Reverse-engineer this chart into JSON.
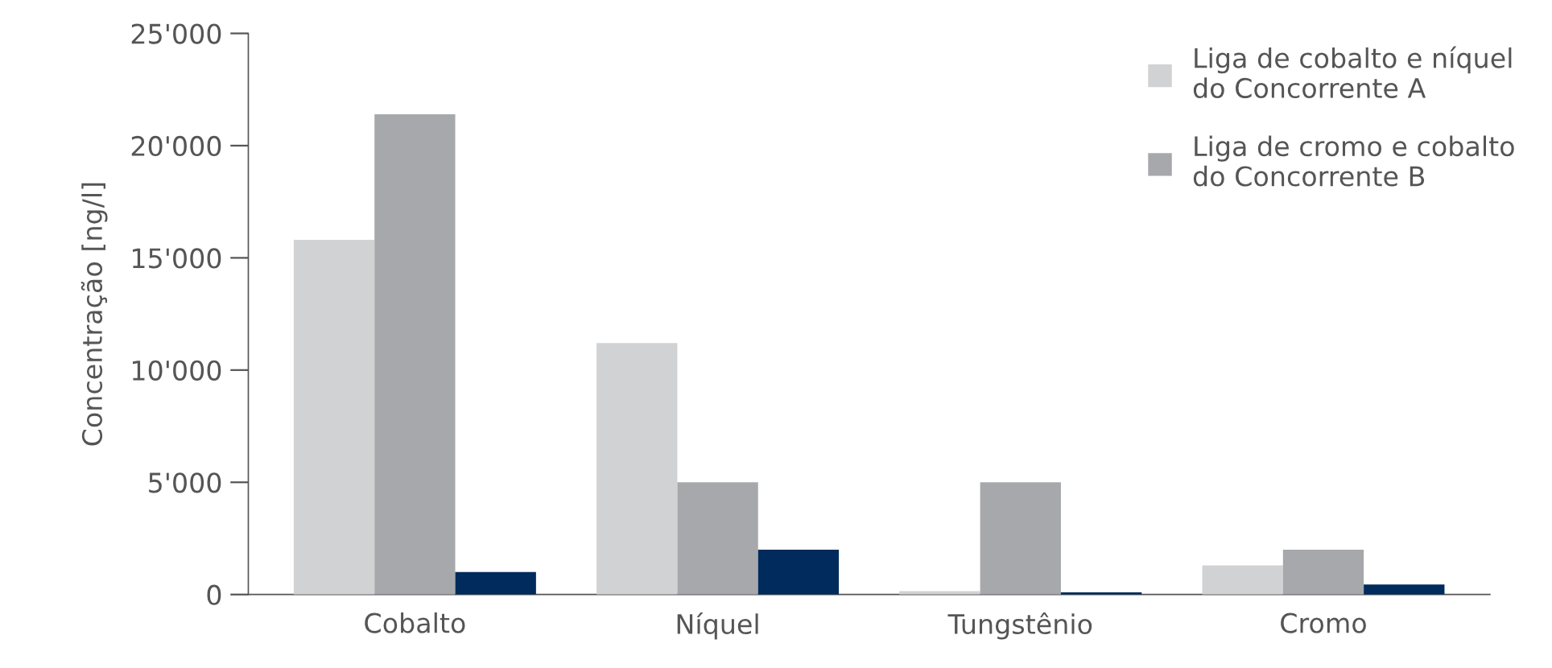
{
  "chart_data": {
    "type": "bar",
    "ylabel": "Concentração [ng/l]",
    "categories": [
      "Cobalto",
      "Níquel",
      "Tungstênio",
      "Cromo"
    ],
    "series": [
      {
        "name": "Liga de cobalto e níquel\ndo Concorrente A",
        "color": "#d1d2d4",
        "values": [
          15800,
          11200,
          150,
          1300
        ]
      },
      {
        "name": "Liga de cromo e cobalto\ndo Concorrente B",
        "color": "#a7a8ab",
        "values": [
          21400,
          5000,
          5000,
          2000
        ]
      },
      {
        "color": "#002b5c",
        "values": [
          1000,
          2000,
          100,
          450
        ]
      }
    ],
    "ylim": [
      0,
      25000
    ],
    "yticks": [
      {
        "value": 0,
        "label": "0"
      },
      {
        "value": 5000,
        "label": "5'000"
      },
      {
        "value": 10000,
        "label": "10'000"
      },
      {
        "value": 15000,
        "label": "15'000"
      },
      {
        "value": 20000,
        "label": "20'000"
      },
      {
        "value": 25000,
        "label": "25'000"
      }
    ],
    "grid": false,
    "legend": "top right"
  }
}
